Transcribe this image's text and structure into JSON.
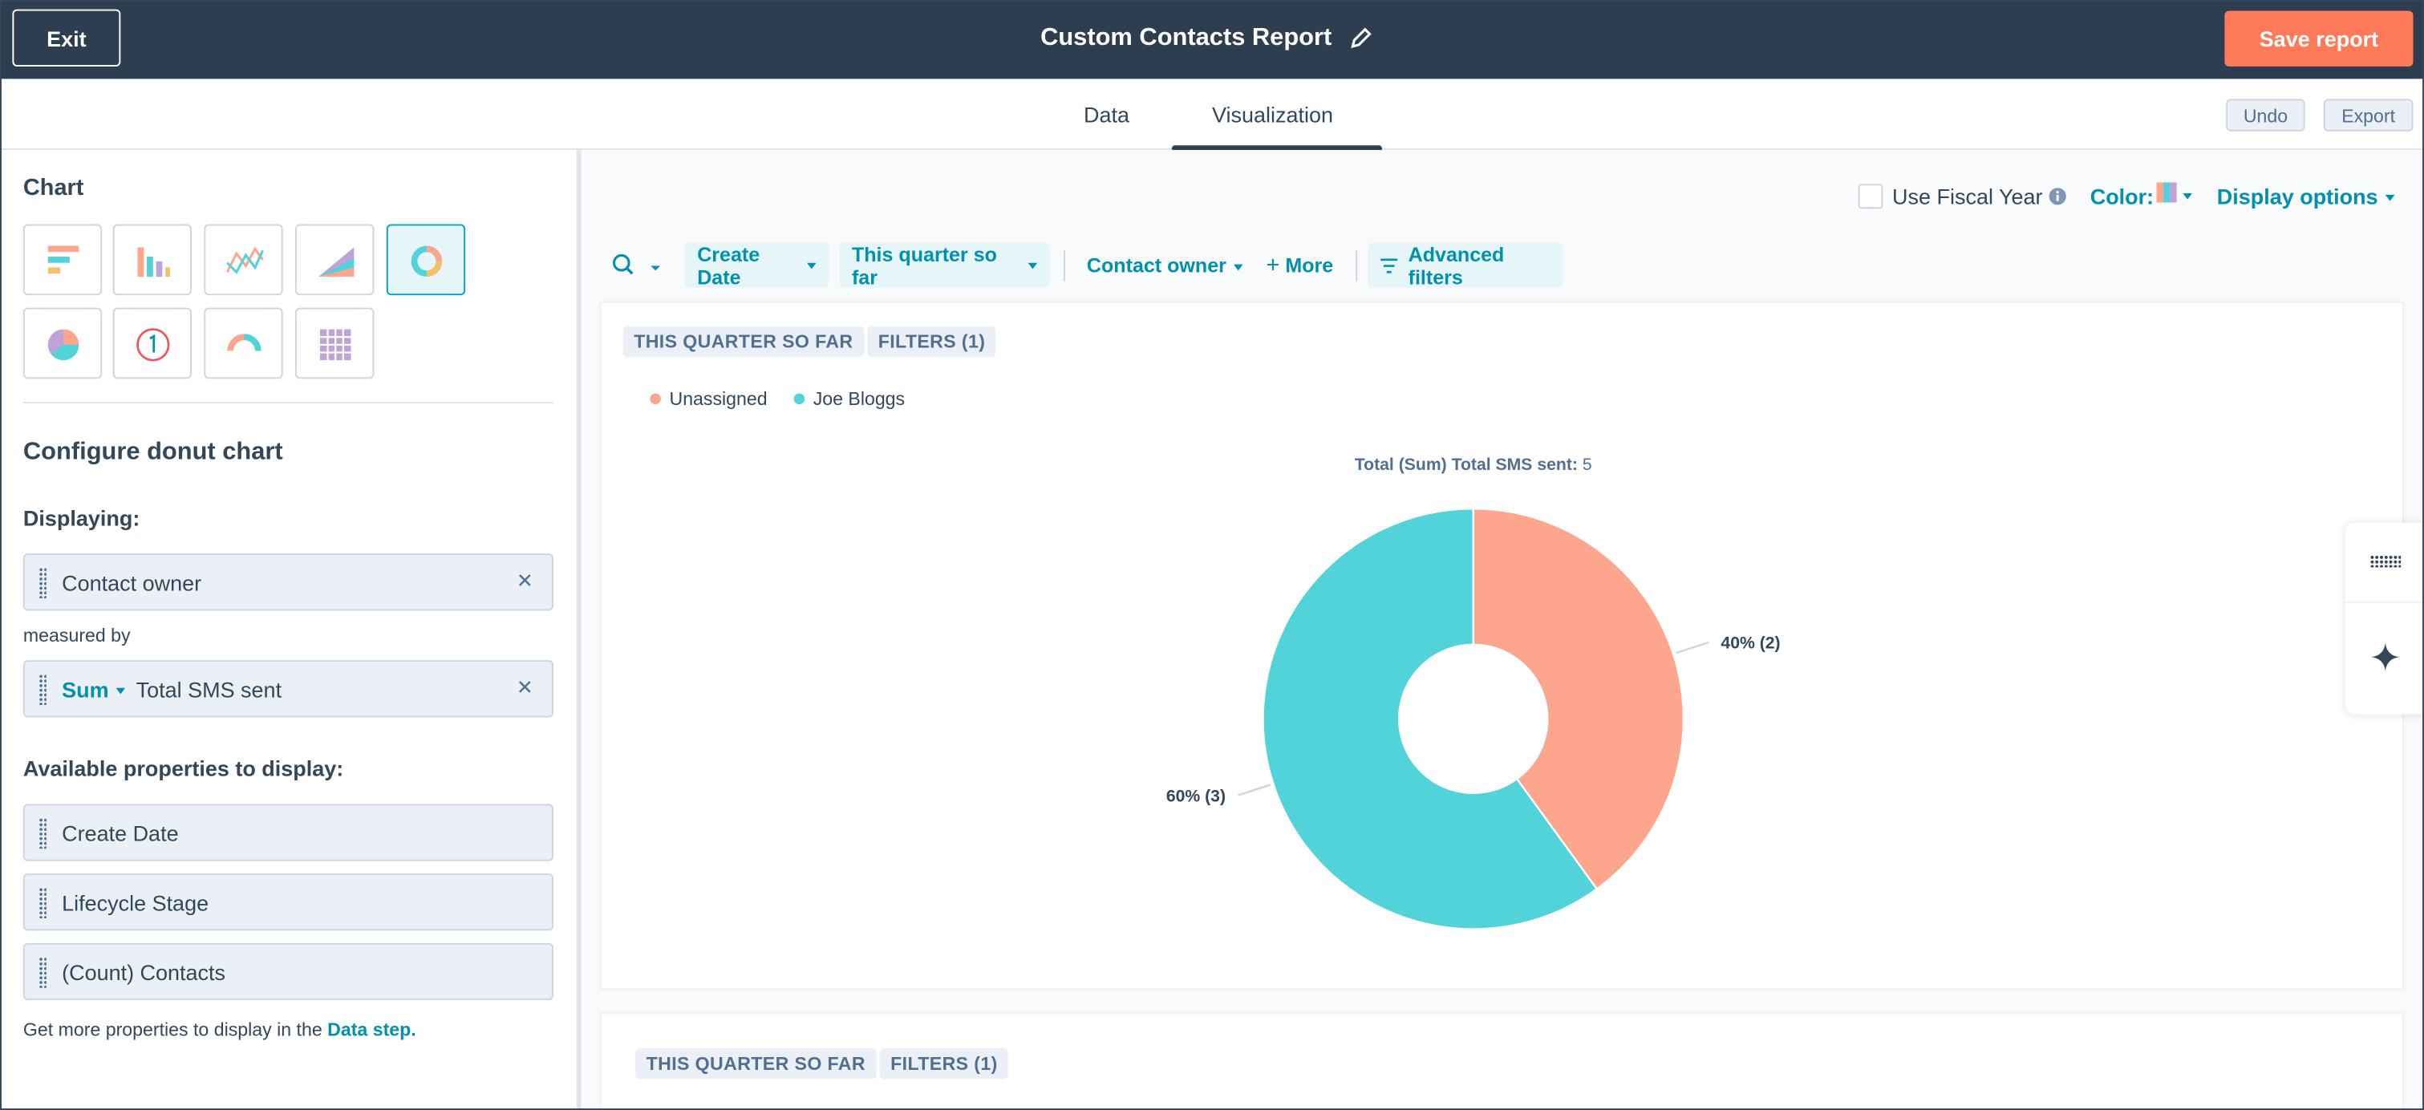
{
  "header": {
    "exit": "Exit",
    "title": "Custom Contacts Report",
    "save": "Save report"
  },
  "tabs": [
    "Data",
    "Visualization"
  ],
  "actions": [
    "Undo",
    "Export"
  ],
  "sidebar": {
    "chart_heading": "Chart",
    "configure": "Configure donut chart",
    "displaying": "Displaying:",
    "dimension": "Contact owner",
    "measured_by": "measured by",
    "aggregation": "Sum",
    "measure": "Total SMS sent",
    "available": "Available properties to display:",
    "properties": [
      "Create Date",
      "Lifecycle Stage",
      "(Count) Contacts"
    ],
    "footer": "Get more properties to display in the",
    "footer_link": "Data step."
  },
  "options": {
    "fiscal": "Use Fiscal Year",
    "color": "Color:",
    "display": "Display options"
  },
  "filters": [
    "Create Date",
    "This quarter so far",
    "Contact owner",
    "More",
    "Advanced filters"
  ],
  "card_tags": [
    "THIS QUARTER SO FAR",
    "FILTERS (1)"
  ],
  "second_card_tags": [
    "THIS QUARTER SO FAR",
    "FILTERS (1)"
  ],
  "chart_data": {
    "type": "donut",
    "title": "Total (Sum) Total SMS sent:",
    "total": 5,
    "categories": [
      "Unassigned",
      "Joe Bloggs"
    ],
    "values": [
      2,
      3
    ],
    "value_labels": [
      "40% (2)",
      "60% (3)"
    ],
    "colors": [
      "#fea58e",
      "#51d3d9"
    ]
  }
}
